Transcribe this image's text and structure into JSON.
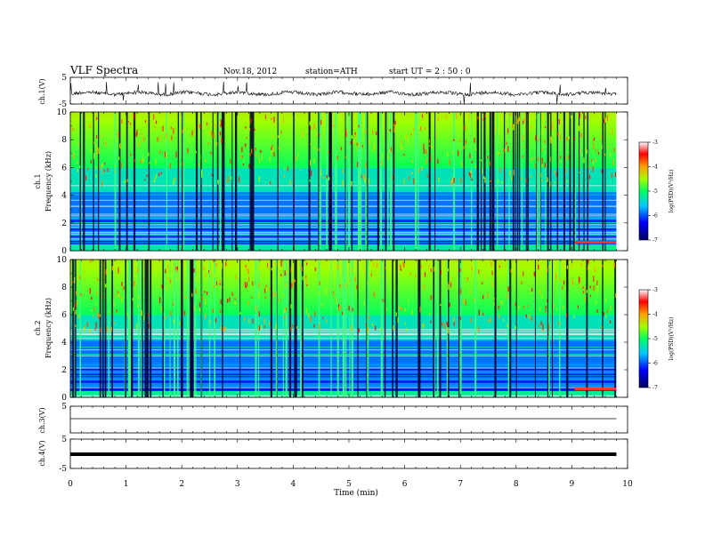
{
  "header": {
    "title": "VLF  Spectra",
    "date": "Nov.18, 2012",
    "station": "station=ATH",
    "start": "start  UT =   2 : 50 : 0"
  },
  "chart_data": [
    {
      "type": "line",
      "panel": "ch1-waveform",
      "ylabel": "ch.1(V)",
      "ylim": [
        -5,
        5
      ],
      "yticks": [
        "5",
        "-5"
      ],
      "x_range_min": [
        0,
        9.8
      ]
    },
    {
      "type": "heatmap",
      "panel": "ch1-spectrogram",
      "ylabel_channel": "ch.1",
      "ylabel": "Frequency  (kHz)",
      "ylim": [
        0,
        10
      ],
      "yticks": [
        "0",
        "2",
        "4",
        "6",
        "8",
        "10"
      ],
      "colorbar": {
        "label": "log(PSD)(V²/Hz)",
        "range": [
          -7,
          -3
        ],
        "ticks": [
          "-3",
          "-4",
          "-5",
          "-6",
          "-7"
        ]
      }
    },
    {
      "type": "heatmap",
      "panel": "ch2-spectrogram",
      "ylabel_channel": "ch.2",
      "ylabel": "Frequency  (kHz)",
      "ylim": [
        0,
        10
      ],
      "yticks": [
        "0",
        "2",
        "4",
        "6",
        "8",
        "10"
      ],
      "colorbar": {
        "label": "log(PSD)(V²/Hz)",
        "range": [
          -7,
          -3
        ],
        "ticks": [
          "-3",
          "-4",
          "-5",
          "-6",
          "-7"
        ]
      }
    },
    {
      "type": "line",
      "panel": "ch3-waveform",
      "ylabel": "ch.3(V)",
      "ylim": [
        -5,
        5
      ],
      "yticks": [
        "5"
      ]
    },
    {
      "type": "line",
      "panel": "ch4-waveform",
      "ylabel": "ch.4(V)",
      "ylim": [
        -5,
        5
      ],
      "yticks": [
        "5",
        "-5"
      ]
    }
  ],
  "xaxis": {
    "label": "Time  (min)",
    "range": [
      0,
      10
    ],
    "ticks": [
      "0",
      "1",
      "2",
      "3",
      "4",
      "5",
      "6",
      "7",
      "8",
      "9",
      "10"
    ]
  }
}
